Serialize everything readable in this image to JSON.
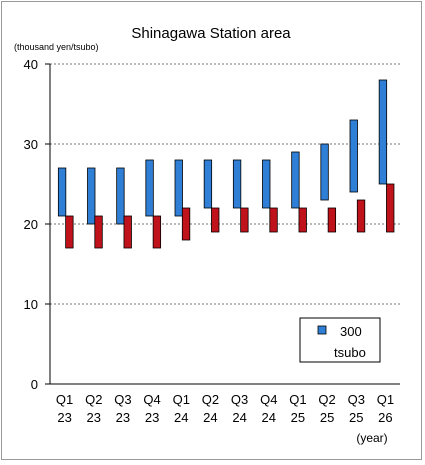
{
  "chart_data": {
    "type": "bar",
    "title": "Shinagawa Station area",
    "unit_label": "(thousand yen/tsubo)",
    "xlabel": "(year)",
    "ylim": [
      0,
      40
    ],
    "yticks": [
      0,
      10,
      20,
      30,
      40
    ],
    "grid": "horizontal dashed",
    "legend_position": "bottom-right",
    "categories": [
      [
        "Q1",
        "23"
      ],
      [
        "Q2",
        "23"
      ],
      [
        "Q3",
        "23"
      ],
      [
        "Q4",
        "23"
      ],
      [
        "Q1",
        "24"
      ],
      [
        "Q2",
        "24"
      ],
      [
        "Q3",
        "24"
      ],
      [
        "Q4",
        "24"
      ],
      [
        "Q1",
        "25"
      ],
      [
        "Q2",
        "25"
      ],
      [
        "Q3",
        "25"
      ],
      [
        "Q1",
        "26"
      ]
    ],
    "series": [
      {
        "name": "300 tsubo",
        "legend_lines": [
          "300",
          "tsubo"
        ],
        "color": "#2f7fd6",
        "low": [
          21,
          20,
          20,
          21,
          21,
          22,
          22,
          22,
          22,
          23,
          24,
          25
        ],
        "high": [
          27,
          27,
          27,
          28,
          28,
          28,
          28,
          28,
          29,
          30,
          33,
          38
        ]
      },
      {
        "color": "#c0121a",
        "low": [
          17,
          17,
          17,
          17,
          18,
          19,
          19,
          19,
          19,
          19,
          19,
          19
        ],
        "high": [
          21,
          21,
          21,
          21,
          22,
          22,
          22,
          22,
          22,
          22,
          23,
          25
        ]
      }
    ]
  }
}
